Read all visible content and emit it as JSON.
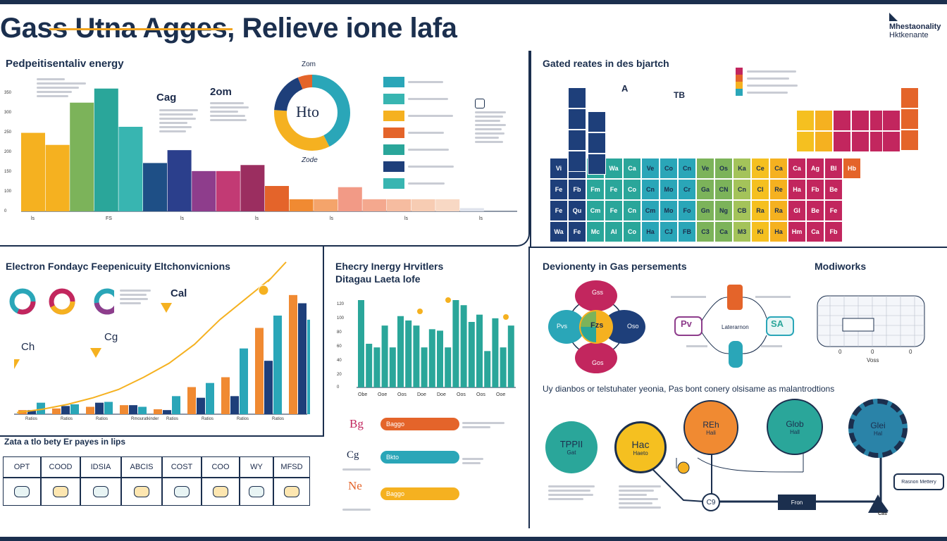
{
  "header": {
    "title": "Gass Utna Agges, Relieve ione lafa",
    "logo_line1": "Mhestaonality",
    "logo_line2": "Hktkenante"
  },
  "panel_energy": {
    "title": "Pedpeitisentaliv energy",
    "y_ticks": [
      "350",
      "300",
      "250",
      "200",
      "150",
      "100",
      "0"
    ],
    "bar_colors": [
      "#f5b120",
      "#f5b120",
      "#7cb35a",
      "#2aa69a",
      "#38b5b1",
      "#1e4f86",
      "#2b3f8c",
      "#8e3d8c",
      "#c23a74",
      "#9b2e60",
      "#e4642a",
      "#f08a32",
      "#f4a46b",
      "#f29a86",
      "#f4a88e",
      "#f6bca0",
      "#f7ccb3",
      "#f8d8c4",
      "#dfe3ec"
    ],
    "x_ticks": [
      "ls",
      "FS",
      "ls",
      "ls",
      "ls",
      "ls",
      "ls"
    ],
    "label_cag": "Cag",
    "label_zom": "2om",
    "donut_center": "Hto",
    "donut_top": "Zom",
    "donut_bottom": "Zode",
    "legend_colors": [
      "#2aa6b8",
      "#38b5b1",
      "#f5b120",
      "#e4642a",
      "#2aa69a",
      "#1e3f7a",
      "#38b5b1"
    ]
  },
  "chart_data": [
    {
      "type": "bar",
      "title": "Pedpeitisentaliv energy",
      "xlabel": "",
      "ylabel": "",
      "ylim": [
        0,
        350
      ],
      "categories": [
        "1",
        "2",
        "3",
        "4",
        "5",
        "6",
        "7",
        "8",
        "9",
        "10",
        "11",
        "12",
        "13",
        "14",
        "15",
        "16",
        "17",
        "18",
        "19"
      ],
      "values": [
        195,
        165,
        270,
        305,
        210,
        120,
        152,
        100,
        100,
        115,
        63,
        30,
        30,
        60,
        30,
        30,
        30,
        30,
        8
      ]
    },
    {
      "type": "bar",
      "title": "Electron Fondayc Feepenicuity Eltchonvicnions",
      "categories": [
        "1",
        "2",
        "3",
        "4",
        "5",
        "6",
        "7",
        "8",
        "9",
        "10",
        "11",
        "12",
        "13",
        "14",
        "15",
        "16",
        "17",
        "18",
        "19",
        "20",
        "21",
        "22",
        "23",
        "24",
        "25",
        "26",
        "27"
      ],
      "values": [
        5,
        5,
        14,
        7,
        10,
        12,
        9,
        14,
        15,
        11,
        11,
        9,
        6,
        5,
        22,
        33,
        20,
        38,
        45,
        22,
        80,
        105,
        65,
        120,
        145,
        135,
        115
      ],
      "trend": [
        2,
        6,
        12,
        20,
        30,
        45,
        62,
        85,
        115,
        140,
        165
      ]
    },
    {
      "type": "bar",
      "title": "Ehecry Inergy Hrvitlers Ditagau Laeta lofe",
      "ylim": [
        0,
        120
      ],
      "y_ticks": [
        "120",
        "100",
        "80",
        "60",
        "40",
        "20",
        "0"
      ],
      "categories": [
        "1",
        "2",
        "3",
        "4",
        "5",
        "6",
        "7",
        "8",
        "9",
        "10",
        "11",
        "12",
        "13",
        "14",
        "15",
        "16",
        "17",
        "18",
        "19",
        "20"
      ],
      "values": [
        120,
        60,
        55,
        85,
        55,
        98,
        92,
        85,
        55,
        80,
        78,
        55,
        120,
        113,
        90,
        100,
        50,
        95,
        55,
        85
      ],
      "x_ticks": [
        "Obe",
        "Ooe",
        "Oos",
        "Doe",
        "Doe",
        "Oos",
        "Oos",
        "Ooe"
      ]
    }
  ],
  "panel_electron": {
    "title": "Electron Fondayc Feepenicuity Eltchonvicnions",
    "label_cal": "Cal",
    "label_cg": "Cg",
    "label_ch": "Ch",
    "x_ticks": [
      "Ratios",
      "Ratios",
      "Ratios",
      "Rmouratkinder",
      "Ratios",
      "Ratios",
      "Ratios",
      "Ratios"
    ]
  },
  "panel_energy_dist": {
    "title_line1": "Ehecry Inergy Hrvitlers",
    "title_line2": "Ditagau Laeta lofe",
    "label_bg": "Bg",
    "label_cg": "Cg",
    "label_ne": "Ne",
    "pill_1": "Baggo",
    "pill_2": "Bkto",
    "pill_3": "Baggo"
  },
  "panel_table": {
    "title": "Zata a tlo bety Er payes in lips",
    "headers": [
      "OPT",
      "COOD",
      "IDSIA",
      "ABCIS",
      "COST",
      "COO",
      "WY",
      "MFSD"
    ]
  },
  "panel_ptable": {
    "title": "Gated reates in des bjartch",
    "label_a": "A",
    "label_tb": "TB",
    "cells": [
      [
        "Vi",
        "A",
        "Wh",
        "Wa",
        "Ca",
        "Ve",
        "Co",
        "Cn",
        "Ve",
        "Os",
        "Ka",
        "Ce",
        "Ca",
        "Ca",
        "Ag",
        "Bl",
        "Hb"
      ],
      [
        "Fe",
        "Fb",
        "Fm",
        "Fe",
        "Co",
        "Cn",
        "Mo",
        "Cr",
        "Ga",
        "CN",
        "Cn",
        "Cl",
        "Re",
        "Ha",
        "Fb",
        "Be"
      ],
      [
        "Fe",
        "Qu",
        "Cm",
        "Fe",
        "Cn",
        "Cm",
        "Mo",
        "Fo",
        "Gn",
        "Ng",
        "CB",
        "Ra",
        "Ra",
        "GI",
        "Be",
        "Fe"
      ],
      [
        "Wa",
        "Fe",
        "Mc",
        "AI",
        "Co",
        "Ha",
        "CJ",
        "FB",
        "C3",
        "Ca",
        "M3",
        "Ki",
        "Ha",
        "Hm",
        "Ca",
        "Fb"
      ]
    ]
  },
  "panel_venn": {
    "title": "Devionenty in Gas persements",
    "center": "Fzs",
    "left": "Pvs",
    "right": "Oso",
    "top": "Gss",
    "bottom": "Gos"
  },
  "panel_flow": {
    "left_box": "Pv",
    "right_box": "SA",
    "mid": "Laterarnon"
  },
  "panel_network": {
    "title": "Modiworks",
    "axis_left": "0",
    "axis_mid": "0",
    "axis_right": "0",
    "axis_label": "Voss"
  },
  "panel_process": {
    "title": "Uy dianbos or telstuhater yeonia, Pas bont conery olsisame as malantrodtions",
    "circle_1": "TPPII",
    "circle_1b": "Gat",
    "circle_2": "Hac",
    "circle_2b": "Haeto",
    "circle_3": "REh",
    "circle_3b": "Hali",
    "circle_4": "Glob",
    "circle_4b": "Hall",
    "circle_5": "Glei",
    "circle_5b": "Hal",
    "node_c9": "C9",
    "node_mid": "Fron",
    "node_end": "Cas",
    "callout": "Rasnon Mettery"
  }
}
